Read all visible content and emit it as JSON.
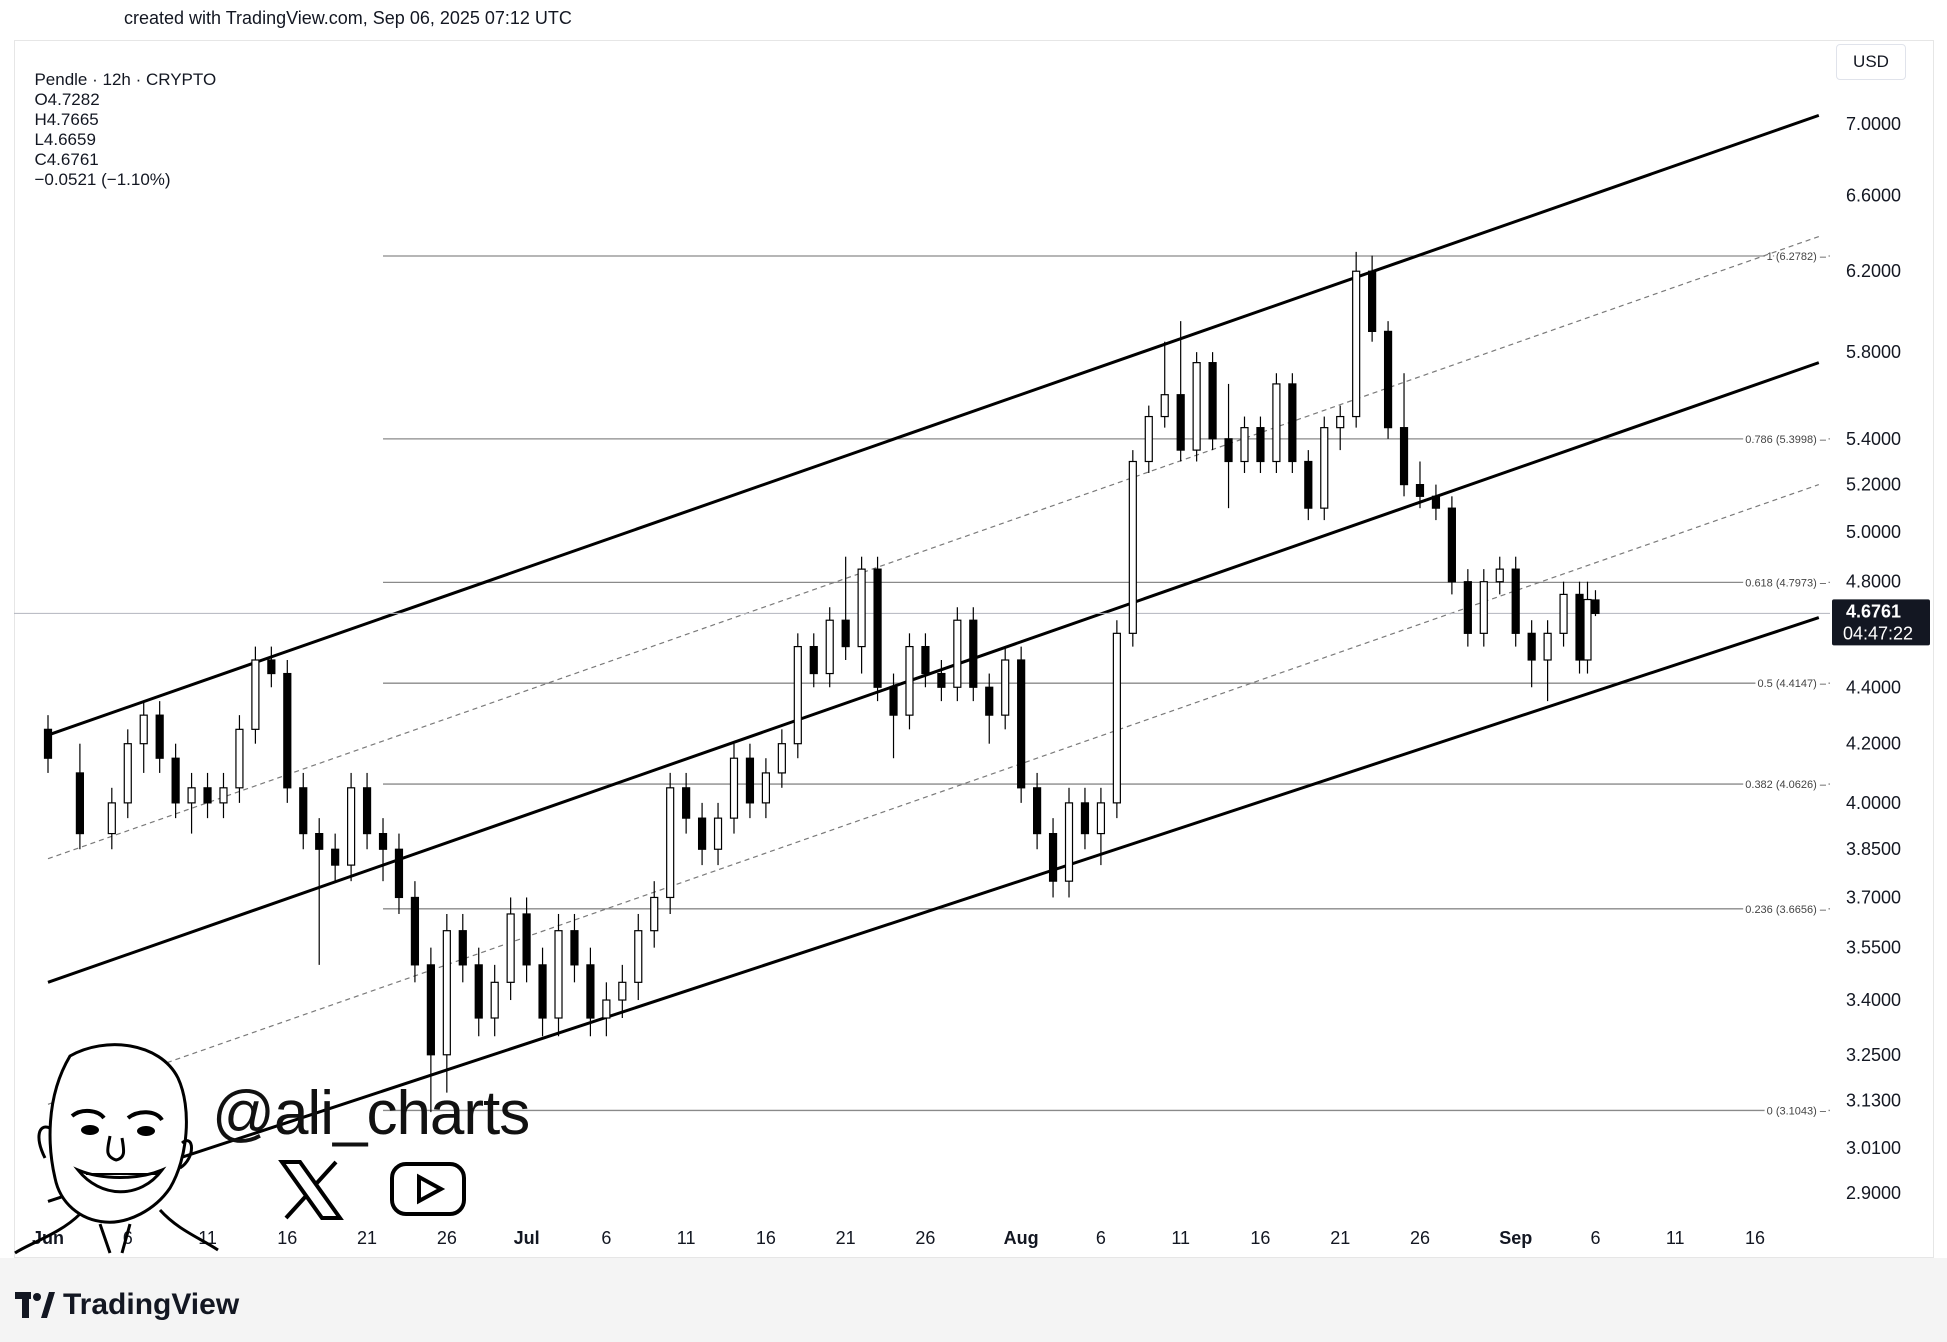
{
  "header": {
    "credit": "created with TradingView.com, Sep 06, 2025 07:12 UTC"
  },
  "legend": {
    "symbol": "Pendle · 12h · CRYPTO",
    "open": "O4.7282",
    "high": "H4.7665",
    "low": "L4.6659",
    "close": "C4.6761",
    "change": "−0.0521 (−1.10%)"
  },
  "currency_button": "USD",
  "price_tag": {
    "price": "4.6761",
    "countdown": "04:47:22"
  },
  "watermark": {
    "handle": "@ali_charts"
  },
  "footer": {
    "brand": "TradingView"
  },
  "colors": {
    "candle": "#000000",
    "channel": "#000000",
    "fib": "#808080",
    "background": "#ffffff"
  },
  "chart_data": {
    "type": "candlestick",
    "y_scale": "log",
    "ylim": [
      2.85,
      7.2
    ],
    "y_ticks": [
      "7.0000",
      "6.6000",
      "6.2000",
      "5.8000",
      "5.4000",
      "5.2000",
      "5.0000",
      "4.8000",
      "4.4000",
      "4.2000",
      "4.0000",
      "3.8500",
      "3.7000",
      "3.5500",
      "3.4000",
      "3.2500",
      "3.1300",
      "3.0100",
      "2.9000"
    ],
    "x_ticks": [
      {
        "date": "2025-06-01",
        "label": "Jun",
        "bold": true
      },
      {
        "date": "2025-06-06",
        "label": "6"
      },
      {
        "date": "2025-06-11",
        "label": "11"
      },
      {
        "date": "2025-06-16",
        "label": "16"
      },
      {
        "date": "2025-06-21",
        "label": "21"
      },
      {
        "date": "2025-06-26",
        "label": "26"
      },
      {
        "date": "2025-07-01",
        "label": "Jul",
        "bold": true
      },
      {
        "date": "2025-07-06",
        "label": "6"
      },
      {
        "date": "2025-07-11",
        "label": "11"
      },
      {
        "date": "2025-07-16",
        "label": "16"
      },
      {
        "date": "2025-07-21",
        "label": "21"
      },
      {
        "date": "2025-07-26",
        "label": "26"
      },
      {
        "date": "2025-08-01",
        "label": "Aug",
        "bold": true
      },
      {
        "date": "2025-08-06",
        "label": "6"
      },
      {
        "date": "2025-08-11",
        "label": "11"
      },
      {
        "date": "2025-08-16",
        "label": "16"
      },
      {
        "date": "2025-08-21",
        "label": "21"
      },
      {
        "date": "2025-08-26",
        "label": "26"
      },
      {
        "date": "2025-09-01",
        "label": "Sep",
        "bold": true
      },
      {
        "date": "2025-09-06",
        "label": "6"
      },
      {
        "date": "2025-09-11",
        "label": "11"
      },
      {
        "date": "2025-09-16",
        "label": "16"
      }
    ],
    "fib_levels": [
      {
        "ratio": "1",
        "value": 6.2782,
        "label": "1 (6.2782)"
      },
      {
        "ratio": "0.786",
        "value": 5.3998,
        "label": "0.786 (5.3998)"
      },
      {
        "ratio": "0.618",
        "value": 4.7973,
        "label": "0.618 (4.7973)"
      },
      {
        "ratio": "0.5",
        "value": 4.4147,
        "label": "0.5 (4.4147)"
      },
      {
        "ratio": "0.382",
        "value": 4.0626,
        "label": "0.382 (4.0626)"
      },
      {
        "ratio": "0.236",
        "value": 3.6656,
        "label": "0.236 (3.6656)"
      },
      {
        "ratio": "0",
        "value": 3.1043,
        "label": "0 (3.1043)"
      }
    ],
    "fib_start_date": "2025-06-22",
    "last_price": 4.6761,
    "channel_lines": [
      {
        "name": "upper",
        "style": "solid",
        "from": {
          "date": "2025-06-01",
          "price": 4.23
        },
        "to": {
          "date": "2025-09-20",
          "price": 7.05
        }
      },
      {
        "name": "middle",
        "style": "solid",
        "from": {
          "date": "2025-06-01",
          "price": 3.45
        },
        "to": {
          "date": "2025-09-20",
          "price": 5.75
        }
      },
      {
        "name": "lower",
        "style": "solid",
        "from": {
          "date": "2025-06-01",
          "price": 2.88
        },
        "to": {
          "date": "2025-09-20",
          "price": 4.66
        }
      },
      {
        "name": "upper-mid",
        "style": "dashed",
        "from": {
          "date": "2025-06-01",
          "price": 3.82
        },
        "to": {
          "date": "2025-09-20",
          "price": 6.38
        }
      },
      {
        "name": "lower-mid",
        "style": "dashed",
        "from": {
          "date": "2025-06-01",
          "price": 3.12
        },
        "to": {
          "date": "2025-09-20",
          "price": 5.2
        }
      }
    ],
    "candles": [
      {
        "date": "2025-06-01",
        "o": 4.25,
        "h": 4.3,
        "l": 4.1,
        "c": 4.15
      },
      {
        "date": "2025-06-03",
        "o": 4.1,
        "h": 4.2,
        "l": 3.85,
        "c": 3.9
      },
      {
        "date": "2025-06-05",
        "o": 3.9,
        "h": 4.05,
        "l": 3.85,
        "c": 4.0
      },
      {
        "date": "2025-06-06",
        "o": 4.0,
        "h": 4.25,
        "l": 3.95,
        "c": 4.2
      },
      {
        "date": "2025-06-07",
        "o": 4.2,
        "h": 4.35,
        "l": 4.1,
        "c": 4.3
      },
      {
        "date": "2025-06-08",
        "o": 4.3,
        "h": 4.35,
        "l": 4.1,
        "c": 4.15
      },
      {
        "date": "2025-06-09",
        "o": 4.15,
        "h": 4.2,
        "l": 3.95,
        "c": 4.0
      },
      {
        "date": "2025-06-10",
        "o": 4.0,
        "h": 4.1,
        "l": 3.9,
        "c": 4.05
      },
      {
        "date": "2025-06-11",
        "o": 4.05,
        "h": 4.1,
        "l": 3.95,
        "c": 4.0
      },
      {
        "date": "2025-06-12",
        "o": 4.0,
        "h": 4.1,
        "l": 3.95,
        "c": 4.05
      },
      {
        "date": "2025-06-13",
        "o": 4.05,
        "h": 4.3,
        "l": 4.0,
        "c": 4.25
      },
      {
        "date": "2025-06-14",
        "o": 4.25,
        "h": 4.55,
        "l": 4.2,
        "c": 4.5
      },
      {
        "date": "2025-06-15",
        "o": 4.5,
        "h": 4.55,
        "l": 4.4,
        "c": 4.45
      },
      {
        "date": "2025-06-16",
        "o": 4.45,
        "h": 4.5,
        "l": 4.0,
        "c": 4.05
      },
      {
        "date": "2025-06-17",
        "o": 4.05,
        "h": 4.1,
        "l": 3.85,
        "c": 3.9
      },
      {
        "date": "2025-06-18",
        "o": 3.9,
        "h": 3.95,
        "l": 3.5,
        "c": 3.85
      },
      {
        "date": "2025-06-19",
        "o": 3.85,
        "h": 3.9,
        "l": 3.75,
        "c": 3.8
      },
      {
        "date": "2025-06-20",
        "o": 3.8,
        "h": 4.1,
        "l": 3.75,
        "c": 4.05
      },
      {
        "date": "2025-06-21",
        "o": 4.05,
        "h": 4.1,
        "l": 3.85,
        "c": 3.9
      },
      {
        "date": "2025-06-22",
        "o": 3.9,
        "h": 3.95,
        "l": 3.75,
        "c": 3.85
      },
      {
        "date": "2025-06-23",
        "o": 3.85,
        "h": 3.9,
        "l": 3.65,
        "c": 3.7
      },
      {
        "date": "2025-06-24",
        "o": 3.7,
        "h": 3.75,
        "l": 3.45,
        "c": 3.5
      },
      {
        "date": "2025-06-25",
        "o": 3.5,
        "h": 3.55,
        "l": 3.1,
        "c": 3.25
      },
      {
        "date": "2025-06-26",
        "o": 3.25,
        "h": 3.65,
        "l": 3.15,
        "c": 3.6
      },
      {
        "date": "2025-06-27",
        "o": 3.6,
        "h": 3.65,
        "l": 3.45,
        "c": 3.5
      },
      {
        "date": "2025-06-28",
        "o": 3.5,
        "h": 3.55,
        "l": 3.3,
        "c": 3.35
      },
      {
        "date": "2025-06-29",
        "o": 3.35,
        "h": 3.5,
        "l": 3.3,
        "c": 3.45
      },
      {
        "date": "2025-06-30",
        "o": 3.45,
        "h": 3.7,
        "l": 3.4,
        "c": 3.65
      },
      {
        "date": "2025-07-01",
        "o": 3.65,
        "h": 3.7,
        "l": 3.45,
        "c": 3.5
      },
      {
        "date": "2025-07-02",
        "o": 3.5,
        "h": 3.55,
        "l": 3.3,
        "c": 3.35
      },
      {
        "date": "2025-07-03",
        "o": 3.35,
        "h": 3.65,
        "l": 3.3,
        "c": 3.6
      },
      {
        "date": "2025-07-04",
        "o": 3.6,
        "h": 3.65,
        "l": 3.45,
        "c": 3.5
      },
      {
        "date": "2025-07-05",
        "o": 3.5,
        "h": 3.55,
        "l": 3.3,
        "c": 3.35
      },
      {
        "date": "2025-07-06",
        "o": 3.35,
        "h": 3.45,
        "l": 3.3,
        "c": 3.4
      },
      {
        "date": "2025-07-07",
        "o": 3.4,
        "h": 3.5,
        "l": 3.35,
        "c": 3.45
      },
      {
        "date": "2025-07-08",
        "o": 3.45,
        "h": 3.65,
        "l": 3.4,
        "c": 3.6
      },
      {
        "date": "2025-07-09",
        "o": 3.6,
        "h": 3.75,
        "l": 3.55,
        "c": 3.7
      },
      {
        "date": "2025-07-10",
        "o": 3.7,
        "h": 4.1,
        "l": 3.65,
        "c": 4.05
      },
      {
        "date": "2025-07-11",
        "o": 4.05,
        "h": 4.1,
        "l": 3.9,
        "c": 3.95
      },
      {
        "date": "2025-07-12",
        "o": 3.95,
        "h": 4.0,
        "l": 3.8,
        "c": 3.85
      },
      {
        "date": "2025-07-13",
        "o": 3.85,
        "h": 4.0,
        "l": 3.8,
        "c": 3.95
      },
      {
        "date": "2025-07-14",
        "o": 3.95,
        "h": 4.2,
        "l": 3.9,
        "c": 4.15
      },
      {
        "date": "2025-07-15",
        "o": 4.15,
        "h": 4.2,
        "l": 3.95,
        "c": 4.0
      },
      {
        "date": "2025-07-16",
        "o": 4.0,
        "h": 4.15,
        "l": 3.95,
        "c": 4.1
      },
      {
        "date": "2025-07-17",
        "o": 4.1,
        "h": 4.25,
        "l": 4.05,
        "c": 4.2
      },
      {
        "date": "2025-07-18",
        "o": 4.2,
        "h": 4.6,
        "l": 4.15,
        "c": 4.55
      },
      {
        "date": "2025-07-19",
        "o": 4.55,
        "h": 4.6,
        "l": 4.4,
        "c": 4.45
      },
      {
        "date": "2025-07-20",
        "o": 4.45,
        "h": 4.7,
        "l": 4.4,
        "c": 4.65
      },
      {
        "date": "2025-07-21",
        "o": 4.65,
        "h": 4.9,
        "l": 4.5,
        "c": 4.55
      },
      {
        "date": "2025-07-22",
        "o": 4.55,
        "h": 4.9,
        "l": 4.45,
        "c": 4.85
      },
      {
        "date": "2025-07-23",
        "o": 4.85,
        "h": 4.9,
        "l": 4.35,
        "c": 4.4
      },
      {
        "date": "2025-07-24",
        "o": 4.4,
        "h": 4.45,
        "l": 4.15,
        "c": 4.3
      },
      {
        "date": "2025-07-25",
        "o": 4.3,
        "h": 4.6,
        "l": 4.25,
        "c": 4.55
      },
      {
        "date": "2025-07-26",
        "o": 4.55,
        "h": 4.6,
        "l": 4.4,
        "c": 4.45
      },
      {
        "date": "2025-07-27",
        "o": 4.45,
        "h": 4.5,
        "l": 4.35,
        "c": 4.4
      },
      {
        "date": "2025-07-28",
        "o": 4.4,
        "h": 4.7,
        "l": 4.35,
        "c": 4.65
      },
      {
        "date": "2025-07-29",
        "o": 4.65,
        "h": 4.7,
        "l": 4.35,
        "c": 4.4
      },
      {
        "date": "2025-07-30",
        "o": 4.4,
        "h": 4.45,
        "l": 4.2,
        "c": 4.3
      },
      {
        "date": "2025-07-31",
        "o": 4.3,
        "h": 4.55,
        "l": 4.25,
        "c": 4.5
      },
      {
        "date": "2025-08-01",
        "o": 4.5,
        "h": 4.55,
        "l": 4.0,
        "c": 4.05
      },
      {
        "date": "2025-08-02",
        "o": 4.05,
        "h": 4.1,
        "l": 3.85,
        "c": 3.9
      },
      {
        "date": "2025-08-03",
        "o": 3.9,
        "h": 3.95,
        "l": 3.7,
        "c": 3.75
      },
      {
        "date": "2025-08-04",
        "o": 3.75,
        "h": 4.05,
        "l": 3.7,
        "c": 4.0
      },
      {
        "date": "2025-08-05",
        "o": 4.0,
        "h": 4.05,
        "l": 3.85,
        "c": 3.9
      },
      {
        "date": "2025-08-06",
        "o": 3.9,
        "h": 4.05,
        "l": 3.8,
        "c": 4.0
      },
      {
        "date": "2025-08-07",
        "o": 4.0,
        "h": 4.65,
        "l": 3.95,
        "c": 4.6
      },
      {
        "date": "2025-08-08",
        "o": 4.6,
        "h": 5.35,
        "l": 4.55,
        "c": 5.3
      },
      {
        "date": "2025-08-09",
        "o": 5.3,
        "h": 5.55,
        "l": 5.25,
        "c": 5.5
      },
      {
        "date": "2025-08-10",
        "o": 5.5,
        "h": 5.85,
        "l": 5.45,
        "c": 5.6
      },
      {
        "date": "2025-08-11",
        "o": 5.6,
        "h": 5.95,
        "l": 5.3,
        "c": 5.35
      },
      {
        "date": "2025-08-12",
        "o": 5.35,
        "h": 5.8,
        "l": 5.3,
        "c": 5.75
      },
      {
        "date": "2025-08-13",
        "o": 5.75,
        "h": 5.8,
        "l": 5.35,
        "c": 5.4
      },
      {
        "date": "2025-08-14",
        "o": 5.4,
        "h": 5.65,
        "l": 5.1,
        "c": 5.3
      },
      {
        "date": "2025-08-15",
        "o": 5.3,
        "h": 5.5,
        "l": 5.25,
        "c": 5.45
      },
      {
        "date": "2025-08-16",
        "o": 5.45,
        "h": 5.5,
        "l": 5.25,
        "c": 5.3
      },
      {
        "date": "2025-08-17",
        "o": 5.3,
        "h": 5.7,
        "l": 5.25,
        "c": 5.65
      },
      {
        "date": "2025-08-18",
        "o": 5.65,
        "h": 5.7,
        "l": 5.25,
        "c": 5.3
      },
      {
        "date": "2025-08-19",
        "o": 5.3,
        "h": 5.35,
        "l": 5.05,
        "c": 5.1
      },
      {
        "date": "2025-08-20",
        "o": 5.1,
        "h": 5.5,
        "l": 5.05,
        "c": 5.45
      },
      {
        "date": "2025-08-21",
        "o": 5.45,
        "h": 5.55,
        "l": 5.35,
        "c": 5.5
      },
      {
        "date": "2025-08-22",
        "o": 5.5,
        "h": 6.3,
        "l": 5.45,
        "c": 6.2
      },
      {
        "date": "2025-08-23",
        "o": 6.2,
        "h": 6.28,
        "l": 5.85,
        "c": 5.9
      },
      {
        "date": "2025-08-24",
        "o": 5.9,
        "h": 5.95,
        "l": 5.4,
        "c": 5.45
      },
      {
        "date": "2025-08-25",
        "o": 5.45,
        "h": 5.7,
        "l": 5.15,
        "c": 5.2
      },
      {
        "date": "2025-08-26",
        "o": 5.2,
        "h": 5.3,
        "l": 5.1,
        "c": 5.15
      },
      {
        "date": "2025-08-27",
        "o": 5.15,
        "h": 5.2,
        "l": 5.05,
        "c": 5.1
      },
      {
        "date": "2025-08-28",
        "o": 5.1,
        "h": 5.15,
        "l": 4.75,
        "c": 4.8
      },
      {
        "date": "2025-08-29",
        "o": 4.8,
        "h": 4.85,
        "l": 4.55,
        "c": 4.6
      },
      {
        "date": "2025-08-30",
        "o": 4.6,
        "h": 4.85,
        "l": 4.55,
        "c": 4.8
      },
      {
        "date": "2025-08-31",
        "o": 4.8,
        "h": 4.9,
        "l": 4.75,
        "c": 4.85
      },
      {
        "date": "2025-09-01",
        "o": 4.85,
        "h": 4.9,
        "l": 4.55,
        "c": 4.6
      },
      {
        "date": "2025-09-02",
        "o": 4.6,
        "h": 4.65,
        "l": 4.4,
        "c": 4.5
      },
      {
        "date": "2025-09-03",
        "o": 4.5,
        "h": 4.65,
        "l": 4.35,
        "c": 4.6
      },
      {
        "date": "2025-09-04",
        "o": 4.6,
        "h": 4.8,
        "l": 4.55,
        "c": 4.75
      },
      {
        "date": "2025-09-05",
        "o": 4.75,
        "h": 4.8,
        "l": 4.45,
        "c": 4.5
      },
      {
        "date": "2025-09-05T12:00",
        "o": 4.5,
        "h": 4.8,
        "l": 4.45,
        "c": 4.73
      },
      {
        "date": "2025-09-06",
        "o": 4.7282,
        "h": 4.7665,
        "l": 4.6659,
        "c": 4.6761
      }
    ]
  }
}
